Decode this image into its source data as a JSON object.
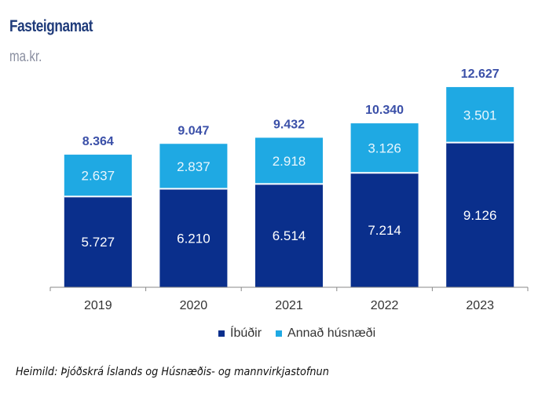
{
  "chart_data": {
    "type": "bar",
    "stacked": true,
    "title": "Fasteignamat",
    "subtitle": "ma.kr.",
    "categories": [
      "2019",
      "2020",
      "2021",
      "2022",
      "2023"
    ],
    "series": [
      {
        "name": "Íbúðir",
        "color": "#0a2f8c",
        "values": [
          5727,
          6210,
          6514,
          7214,
          9126
        ],
        "labels": [
          "5.727",
          "6.210",
          "6.514",
          "7.214",
          "9.126"
        ]
      },
      {
        "name": "Annað húsnæði",
        "color": "#1fa9e3",
        "values": [
          2637,
          2837,
          2918,
          3126,
          3501
        ],
        "labels": [
          "2.637",
          "2.837",
          "2.918",
          "3.126",
          "3.501"
        ]
      }
    ],
    "totals": [
      8364,
      9047,
      9432,
      10340,
      12627
    ],
    "total_labels": [
      "8.364",
      "9.047",
      "9.432",
      "10.340",
      "12.627"
    ],
    "total_label_color": "#3a4fa8",
    "legend_position": "bottom",
    "grid": false,
    "ylim": [
      0,
      12627
    ]
  },
  "source": "Heimild: Þjóðskrá Íslands og Húsnæðis- og mannvirkjastofnun"
}
